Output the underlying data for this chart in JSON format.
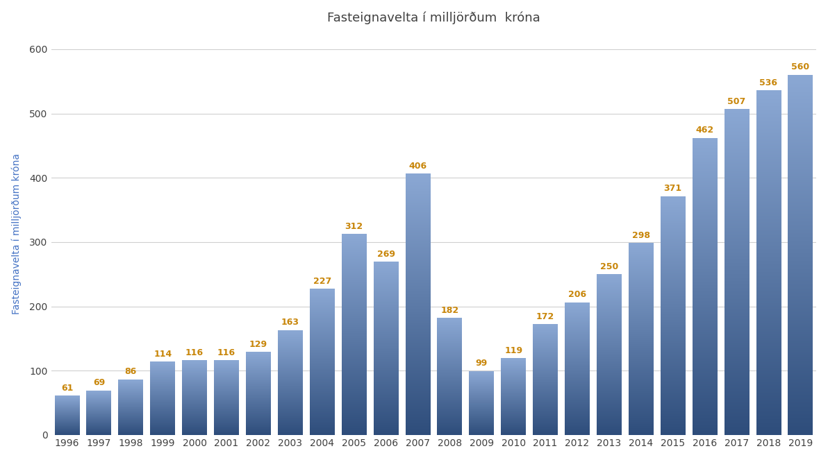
{
  "title": "Fasteignavelta í milljörðum  króna",
  "ylabel": "Fasteignavelta í milljörðum króna",
  "years": [
    1996,
    1997,
    1998,
    1999,
    2000,
    2001,
    2002,
    2003,
    2004,
    2005,
    2006,
    2007,
    2008,
    2009,
    2010,
    2011,
    2012,
    2013,
    2014,
    2015,
    2016,
    2017,
    2018,
    2019
  ],
  "values": [
    61,
    69,
    86,
    114,
    116,
    116,
    129,
    163,
    227,
    312,
    269,
    406,
    182,
    99,
    119,
    172,
    206,
    250,
    298,
    371,
    462,
    507,
    536,
    560
  ],
  "bar_color_top": "#8BA8D4",
  "bar_color_bottom": "#2E4D7B",
  "label_color": "#C8860A",
  "ylabel_color": "#4472C4",
  "title_color": "#404040",
  "background_color": "#FFFFFF",
  "grid_color": "#D0D0D0",
  "yticks": [
    0,
    100,
    200,
    300,
    400,
    500,
    600
  ],
  "ylim": [
    0,
    625
  ],
  "label_fontsize": 9,
  "title_fontsize": 13,
  "axis_fontsize": 10,
  "ylabel_fontsize": 10,
  "bar_width": 0.78
}
